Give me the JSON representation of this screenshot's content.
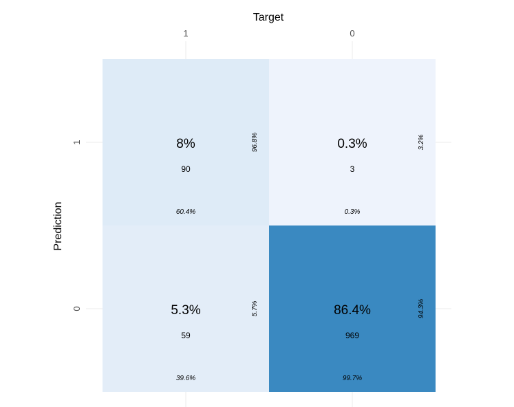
{
  "chart_data": {
    "type": "heatmap",
    "title": "",
    "xlabel": "Target",
    "ylabel": "Prediction",
    "x_categories": [
      "1",
      "0"
    ],
    "y_categories": [
      "1",
      "0"
    ],
    "grid": true,
    "cells": [
      {
        "target": "1",
        "prediction": "1",
        "count": "90",
        "percent": "8%",
        "col_pct": "60.4%",
        "row_pct": "96.8%",
        "color": "#deebf7"
      },
      {
        "target": "0",
        "prediction": "1",
        "count": "3",
        "percent": "0.3%",
        "col_pct": "0.3%",
        "row_pct": "3.2%",
        "color": "#eef3fc"
      },
      {
        "target": "1",
        "prediction": "0",
        "count": "59",
        "percent": "5.3%",
        "col_pct": "39.6%",
        "row_pct": "5.7%",
        "color": "#e3edf8"
      },
      {
        "target": "0",
        "prediction": "0",
        "count": "969",
        "percent": "86.4%",
        "col_pct": "99.7%",
        "row_pct": "94.3%",
        "color": "#3a89c1"
      }
    ]
  }
}
